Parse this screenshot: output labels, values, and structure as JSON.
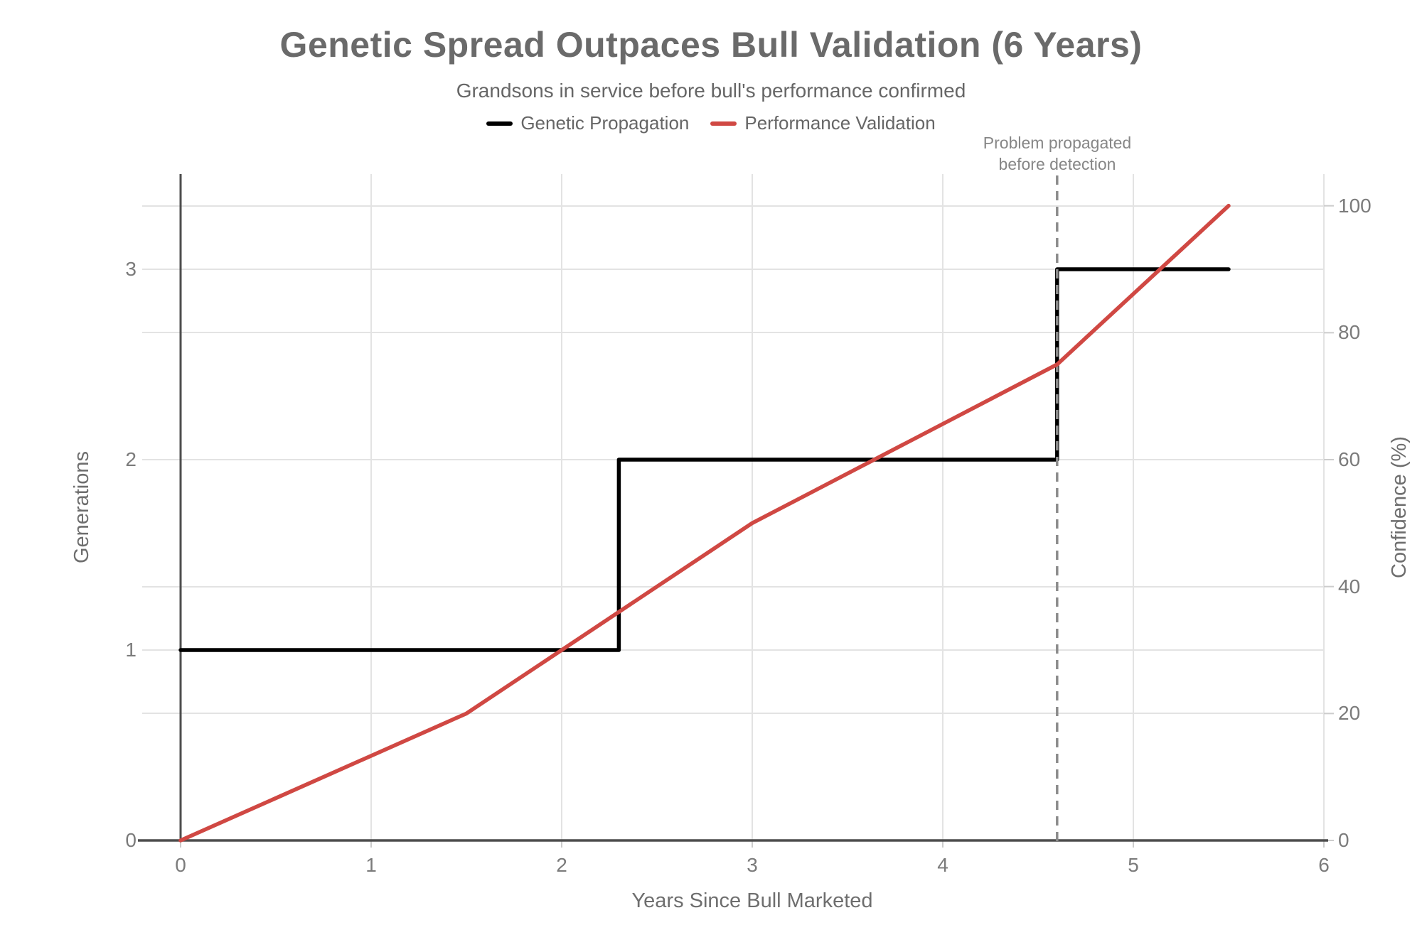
{
  "chart": {
    "title": "Genetic Spread Outpaces Bull Validation (6 Years)",
    "subtitle": "Grandsons in service before bull's performance confirmed",
    "legend": [
      {
        "label": "Genetic Propagation",
        "color": "#000000"
      },
      {
        "label": "Performance Validation",
        "color": "#d04843"
      }
    ],
    "annotation": {
      "line1": "Problem propagated",
      "line2": "before detection"
    },
    "x_axis": {
      "title": "Years Since Bull Marketed",
      "ticks": [
        "0",
        "1",
        "2",
        "3",
        "4",
        "5",
        "6"
      ]
    },
    "y_axis_left": {
      "title": "Generations",
      "ticks": [
        "0",
        "1",
        "2",
        "3"
      ]
    },
    "y_axis_right": {
      "title": "Confidence (%)",
      "ticks": [
        "0",
        "20",
        "40",
        "60",
        "80",
        "100"
      ]
    }
  },
  "chart_data": {
    "type": "line",
    "title": "Genetic Spread Outpaces Bull Validation (6 Years)",
    "subtitle": "Grandsons in service before bull's performance confirmed",
    "xlabel": "Years Since Bull Marketed",
    "ylabel_left": "Generations",
    "ylabel_right": "Confidence (%)",
    "x_range": [
      0,
      6
    ],
    "x_ticks": [
      0,
      1,
      2,
      3,
      4,
      5,
      6
    ],
    "y_left_range": [
      0,
      3.5
    ],
    "y_left_ticks": [
      0,
      1,
      2,
      3
    ],
    "y_right_range": [
      0,
      105
    ],
    "y_right_ticks": [
      0,
      20,
      40,
      60,
      80,
      100
    ],
    "grid": true,
    "legend_position": "top",
    "series": [
      {
        "name": "Genetic Propagation",
        "axis": "left",
        "color": "#000000",
        "style": "step",
        "points": [
          [
            0,
            1
          ],
          [
            2.3,
            1
          ],
          [
            2.3,
            2
          ],
          [
            4.6,
            2
          ],
          [
            4.6,
            3
          ],
          [
            5.5,
            3
          ]
        ]
      },
      {
        "name": "Performance Validation",
        "axis": "right",
        "color": "#d04843",
        "style": "linear",
        "points": [
          [
            0,
            0
          ],
          [
            1.5,
            20
          ],
          [
            3,
            50
          ],
          [
            4.6,
            75
          ],
          [
            5.5,
            100
          ]
        ]
      }
    ],
    "vline": {
      "x": 4.6,
      "style": "dashed",
      "color": "#8c8c8c",
      "label": "Problem propagated before detection"
    }
  },
  "colors": {
    "background": "#ffffff",
    "title": "#6a6a6a",
    "subtitle": "#666666",
    "legend_text": "#666666",
    "tick_text": "#7b7b7b",
    "axis_title_text": "#6e6e6e",
    "axis_line": "#4d4d4d",
    "grid_line": "#e3e3e3",
    "minor_tick": "#cccccc",
    "dashed_line": "#8c8c8c",
    "annotation_text": "#868686",
    "series_black": "#000000",
    "series_red": "#d04843"
  }
}
